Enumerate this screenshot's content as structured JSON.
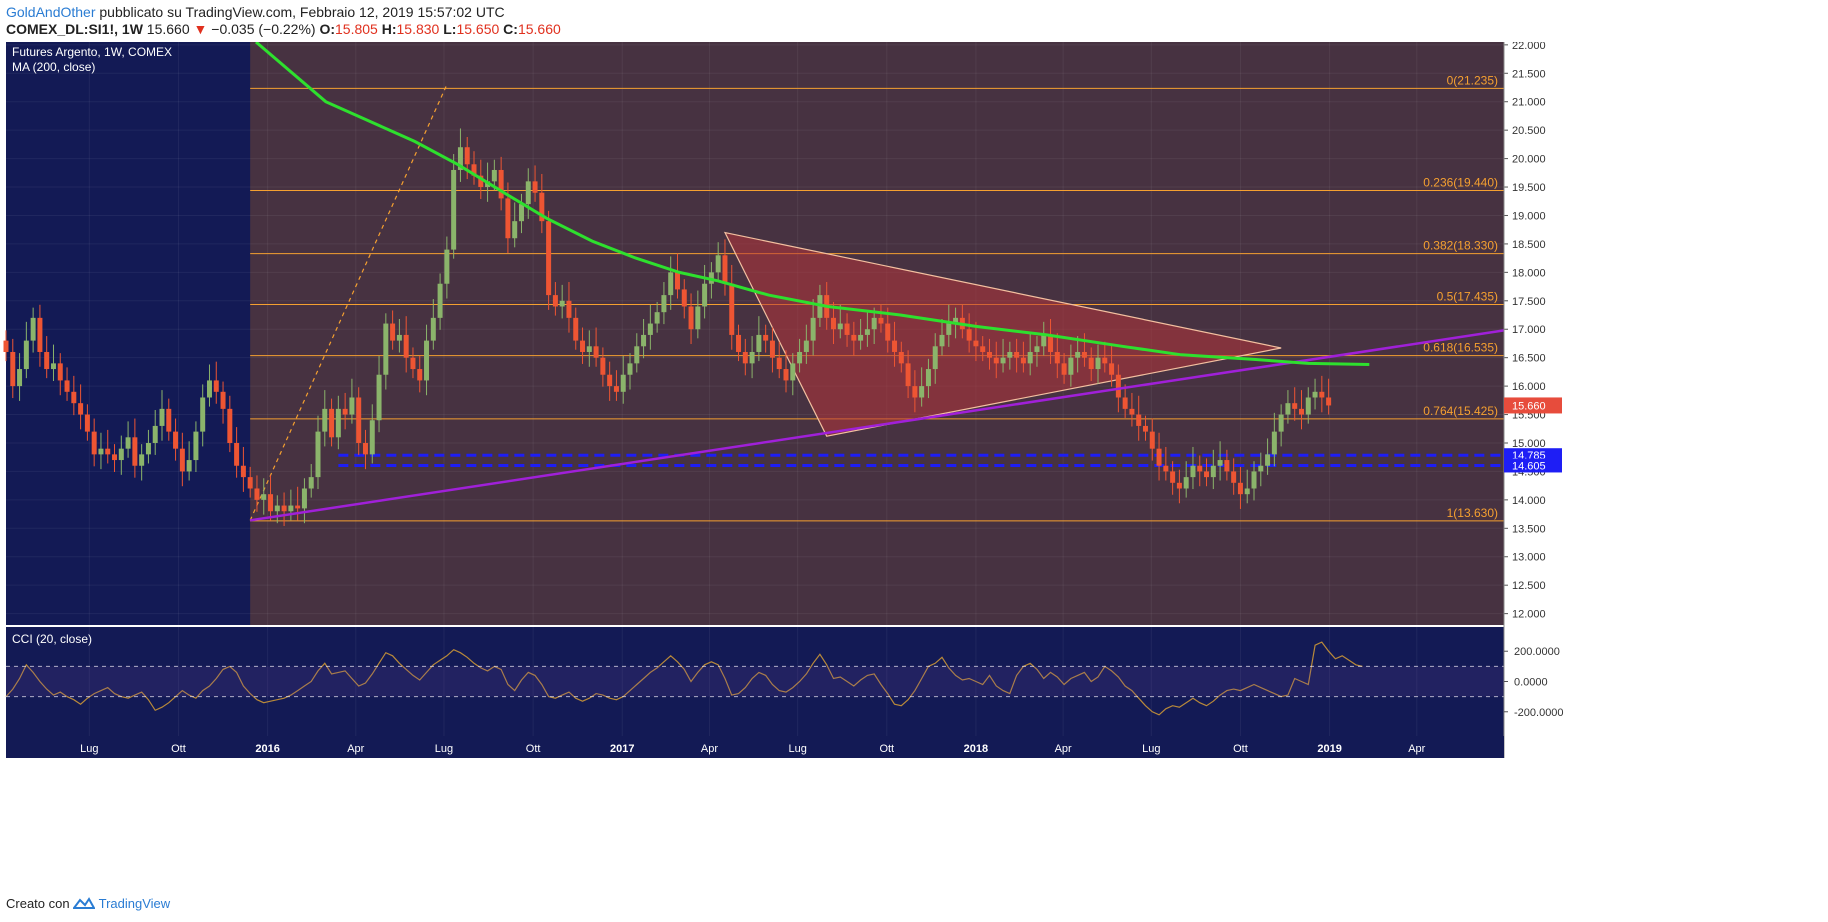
{
  "header": {
    "author": "GoldAndOther",
    "published": "pubblicato su TradingView.com, Febbraio 12, 2019 15:57:02 UTC",
    "symbol": "COMEX_DL:SI1!, 1W",
    "last": "15.660",
    "change_arrow": "▼",
    "change": "−0.035 (−0.22%)",
    "o_label": "O:",
    "o_value": "15.805",
    "h_label": "H:",
    "h_value": "15.830",
    "l_label": "L:",
    "l_value": "15.650",
    "c_label": "C:",
    "c_value": "15.660"
  },
  "legend": {
    "title": "Futures Argento, 1W, COMEX",
    "ma": "MA (200, close)",
    "cci": "CCI (20, close)"
  },
  "footer": {
    "created": "Creato con",
    "brand": "TradingView",
    "logo_icon": "tradingview-logo-icon"
  },
  "colors": {
    "background": "#131a55",
    "fib_fill": "#4a3440",
    "fib_line": "#f5a030",
    "fib_text": "#f5a030",
    "up": "#8bb46b",
    "down": "#ee5533",
    "ma": "#2ee02e",
    "trendline": "#a020d8",
    "triangle": "#b5343a",
    "support": "#1e1ef5",
    "cci": "#b8893a",
    "price_tag": "#e74c3c"
  },
  "chart_data": [
    {
      "type": "candlestick",
      "title": "Futures Argento, 1W, COMEX",
      "ylim": [
        11.8,
        22.05
      ],
      "y_ticks": [
        "12.000",
        "12.500",
        "13.000",
        "13.500",
        "14.000",
        "14.500",
        "15.000",
        "15.500",
        "16.000",
        "16.500",
        "17.000",
        "17.500",
        "18.000",
        "18.500",
        "19.000",
        "19.500",
        "20.000",
        "20.500",
        "21.000",
        "21.500",
        "22.000"
      ],
      "x_ticks": [
        "Lug",
        "Ott",
        "2016",
        "Apr",
        "Lug",
        "Ott",
        "2017",
        "Apr",
        "Lug",
        "Ott",
        "2018",
        "Apr",
        "Lug",
        "Ott",
        "2019",
        "Apr"
      ],
      "x_tick_dates": [
        "2015-07-01",
        "2015-10-01",
        "2016-01-01",
        "2016-04-01",
        "2016-07-01",
        "2016-10-01",
        "2017-01-01",
        "2017-04-01",
        "2017-07-01",
        "2017-10-01",
        "2018-01-01",
        "2018-04-01",
        "2018-07-01",
        "2018-10-01",
        "2019-01-01",
        "2019-04-01"
      ],
      "x_range": [
        "2015-04-06",
        "2019-06-30"
      ],
      "closes_weekly": {
        "start": "2015-04-06",
        "values": [
          16.6,
          16.0,
          16.3,
          16.8,
          17.2,
          16.6,
          16.3,
          16.4,
          16.1,
          15.9,
          15.7,
          15.5,
          15.2,
          14.8,
          14.9,
          14.8,
          14.7,
          14.9,
          15.1,
          14.6,
          14.8,
          15.0,
          15.3,
          15.6,
          15.2,
          14.9,
          14.5,
          14.7,
          15.2,
          15.8,
          16.1,
          15.9,
          15.6,
          15.0,
          14.6,
          14.4,
          14.2,
          14.0,
          14.1,
          13.8,
          13.9,
          13.8,
          13.9,
          13.85,
          14.2,
          14.4,
          15.2,
          15.6,
          15.1,
          15.6,
          15.5,
          15.8,
          15.0,
          14.8,
          15.4,
          16.2,
          17.1,
          16.8,
          16.9,
          16.5,
          16.3,
          16.1,
          16.8,
          17.2,
          17.8,
          18.4,
          19.8,
          20.2,
          19.9,
          19.7,
          19.5,
          19.6,
          19.8,
          19.3,
          18.6,
          18.9,
          19.2,
          19.6,
          19.4,
          18.9,
          17.6,
          17.4,
          17.5,
          17.2,
          16.8,
          16.6,
          16.7,
          16.5,
          16.2,
          16.0,
          15.9,
          16.2,
          16.4,
          16.7,
          16.9,
          17.1,
          17.3,
          17.6,
          18.0,
          17.7,
          17.4,
          17.0,
          17.4,
          17.8,
          18.0,
          18.3,
          17.8,
          16.9,
          16.6,
          16.4,
          16.6,
          16.9,
          16.8,
          16.5,
          16.3,
          16.1,
          16.4,
          16.6,
          16.8,
          17.2,
          17.6,
          17.2,
          17.0,
          17.1,
          16.9,
          16.8,
          16.9,
          17.0,
          17.2,
          17.1,
          16.8,
          16.6,
          16.4,
          16.0,
          15.8,
          16.0,
          16.3,
          16.7,
          16.9,
          17.1,
          17.2,
          17.0,
          16.8,
          16.7,
          16.6,
          16.5,
          16.4,
          16.5,
          16.6,
          16.5,
          16.4,
          16.6,
          16.7,
          16.9,
          16.6,
          16.4,
          16.2,
          16.5,
          16.6,
          16.5,
          16.3,
          16.5,
          16.4,
          16.2,
          15.8,
          15.6,
          15.5,
          15.3,
          15.2,
          14.9,
          14.6,
          14.5,
          14.3,
          14.2,
          14.4,
          14.6,
          14.5,
          14.4,
          14.6,
          14.7,
          14.5,
          14.3,
          14.1,
          14.2,
          14.5,
          14.6,
          14.8,
          15.2,
          15.5,
          15.7,
          15.6,
          15.5,
          15.8,
          15.9,
          15.8,
          15.66
        ]
      },
      "last_price": "15.660",
      "ma200": {
        "name": "MA (200, close)",
        "points": [
          [
            "2015-12-20",
            22.05
          ],
          [
            "2016-03-01",
            21.0
          ],
          [
            "2016-06-01",
            20.3
          ],
          [
            "2016-07-15",
            19.9
          ],
          [
            "2016-09-01",
            19.4
          ],
          [
            "2016-10-15",
            18.95
          ],
          [
            "2016-12-01",
            18.55
          ],
          [
            "2017-01-15",
            18.25
          ],
          [
            "2017-03-01",
            18.0
          ],
          [
            "2017-04-10",
            17.85
          ],
          [
            "2017-06-01",
            17.6
          ],
          [
            "2017-08-01",
            17.4
          ],
          [
            "2017-10-15",
            17.25
          ],
          [
            "2018-01-01",
            17.05
          ],
          [
            "2018-03-15",
            16.9
          ],
          [
            "2018-06-01",
            16.7
          ],
          [
            "2018-08-01",
            16.55
          ],
          [
            "2018-10-15",
            16.47
          ],
          [
            "2018-12-10",
            16.4
          ],
          [
            "2019-02-11",
            16.38
          ]
        ]
      },
      "fibonacci": [
        {
          "label": "0(21.235)",
          "value": 21.235
        },
        {
          "label": "0.236(19.440)",
          "value": 19.44
        },
        {
          "label": "0.382(18.330)",
          "value": 18.33
        },
        {
          "label": "0.5(17.435)",
          "value": 17.435
        },
        {
          "label": "0.618(16.535)",
          "value": 16.535
        },
        {
          "label": "0.764(15.425)",
          "value": 15.425
        },
        {
          "label": "1(13.630)",
          "value": 13.63
        }
      ],
      "fib_range_start": "2015-12-14",
      "trendline": [
        [
          "2015-12-14",
          13.64
        ],
        [
          "2019-06-30",
          16.98
        ]
      ],
      "fib_diagonal": [
        [
          "2015-12-14",
          13.64
        ],
        [
          "2016-07-04",
          21.3
        ]
      ],
      "triangle": [
        [
          "2017-04-17",
          18.7
        ],
        [
          "2017-07-31",
          15.12
        ],
        [
          "2018-11-12",
          16.67
        ]
      ],
      "support_levels": [
        {
          "value": 14.785,
          "label": "14.785",
          "start": "2016-03-14"
        },
        {
          "value": 14.605,
          "label": "14.605",
          "start": "2016-03-14"
        }
      ]
    },
    {
      "type": "line",
      "title": "CCI (20, close)",
      "ylim": [
        -360,
        360
      ],
      "y_ticks": [
        "200.0000",
        "0.0000",
        "-200.0000"
      ],
      "bands": [
        100,
        -100
      ],
      "start": "2015-04-06",
      "values": [
        -100,
        -50,
        20,
        110,
        60,
        0,
        -50,
        -90,
        -70,
        -100,
        -120,
        -150,
        -110,
        -80,
        -60,
        -40,
        -80,
        -100,
        -110,
        -90,
        -70,
        -120,
        -190,
        -170,
        -140,
        -100,
        -60,
        -90,
        -110,
        -60,
        -30,
        20,
        80,
        100,
        60,
        -30,
        -80,
        -120,
        -140,
        -130,
        -120,
        -110,
        -90,
        -60,
        -30,
        0,
        70,
        120,
        50,
        60,
        70,
        20,
        -30,
        -10,
        50,
        120,
        190,
        170,
        120,
        80,
        40,
        10,
        60,
        110,
        140,
        170,
        210,
        190,
        160,
        120,
        90,
        70,
        100,
        80,
        -20,
        -60,
        10,
        60,
        40,
        -20,
        -100,
        -110,
        -90,
        -70,
        -110,
        -130,
        -110,
        -80,
        -90,
        -110,
        -120,
        -100,
        -60,
        -20,
        20,
        60,
        90,
        130,
        170,
        130,
        80,
        0,
        60,
        110,
        130,
        110,
        20,
        -90,
        -80,
        -40,
        20,
        60,
        40,
        -20,
        -60,
        -70,
        -40,
        0,
        50,
        120,
        180,
        110,
        20,
        30,
        0,
        -30,
        10,
        40,
        50,
        -20,
        -80,
        -150,
        -160,
        -120,
        -60,
        20,
        100,
        120,
        160,
        90,
        40,
        10,
        20,
        0,
        -20,
        40,
        -30,
        -60,
        -80,
        40,
        100,
        120,
        80,
        20,
        60,
        30,
        -20,
        20,
        40,
        60,
        0,
        30,
        100,
        70,
        30,
        -30,
        -60,
        -110,
        -160,
        -200,
        -220,
        -180,
        -160,
        -170,
        -140,
        -110,
        -140,
        -160,
        -130,
        -90,
        -60,
        -50,
        -60,
        -40,
        -20,
        -40,
        -60,
        -80,
        -100,
        -90,
        20,
        0,
        -20,
        240,
        260,
        200,
        150,
        170,
        140,
        110,
        100
      ]
    }
  ]
}
